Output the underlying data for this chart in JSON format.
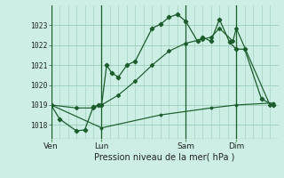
{
  "bg_color": "#cceee4",
  "grid_color": "#99ccbb",
  "line_color": "#1a5c2a",
  "title": "Pression niveau de la mer( hPa )",
  "ylim": [
    1017.3,
    1024.0
  ],
  "yticks": [
    1018,
    1019,
    1020,
    1021,
    1022,
    1023
  ],
  "xtick_labels": [
    "Ven",
    "Lun",
    "Sam",
    "Dim"
  ],
  "xtick_positions": [
    0,
    3,
    8,
    11
  ],
  "xlim": [
    0,
    13.5
  ],
  "series1": [
    [
      0,
      1019.0
    ],
    [
      0.5,
      1018.3
    ],
    [
      1.5,
      1017.7
    ],
    [
      2.0,
      1017.75
    ],
    [
      2.5,
      1018.9
    ],
    [
      2.8,
      1019.0
    ],
    [
      3.0,
      1019.0
    ],
    [
      3.3,
      1021.0
    ],
    [
      3.6,
      1020.6
    ],
    [
      4.0,
      1020.4
    ],
    [
      4.5,
      1021.0
    ],
    [
      5.0,
      1021.2
    ],
    [
      6.0,
      1022.85
    ],
    [
      6.5,
      1023.05
    ],
    [
      7.0,
      1023.4
    ],
    [
      7.5,
      1023.55
    ],
    [
      8.0,
      1023.2
    ],
    [
      8.7,
      1022.2
    ],
    [
      9.0,
      1022.4
    ],
    [
      9.5,
      1022.2
    ],
    [
      10.0,
      1023.3
    ],
    [
      10.6,
      1022.15
    ],
    [
      11.0,
      1021.8
    ],
    [
      11.5,
      1021.8
    ],
    [
      12.5,
      1019.3
    ],
    [
      13.2,
      1019.0
    ]
  ],
  "series2": [
    [
      0,
      1019.0
    ],
    [
      1.5,
      1018.85
    ],
    [
      2.5,
      1018.85
    ],
    [
      3.0,
      1019.0
    ],
    [
      4.0,
      1019.5
    ],
    [
      5.0,
      1020.2
    ],
    [
      6.0,
      1021.0
    ],
    [
      7.0,
      1021.7
    ],
    [
      8.0,
      1022.1
    ],
    [
      9.0,
      1022.3
    ],
    [
      9.5,
      1022.4
    ],
    [
      10.0,
      1022.85
    ],
    [
      10.8,
      1022.2
    ],
    [
      11.0,
      1022.85
    ],
    [
      13.0,
      1019.0
    ]
  ],
  "series3": [
    [
      0,
      1019.0
    ],
    [
      3.0,
      1017.85
    ],
    [
      6.5,
      1018.5
    ],
    [
      9.5,
      1018.85
    ],
    [
      11.0,
      1019.0
    ],
    [
      13.2,
      1019.1
    ]
  ],
  "vlines": [
    0,
    3,
    8,
    11
  ]
}
